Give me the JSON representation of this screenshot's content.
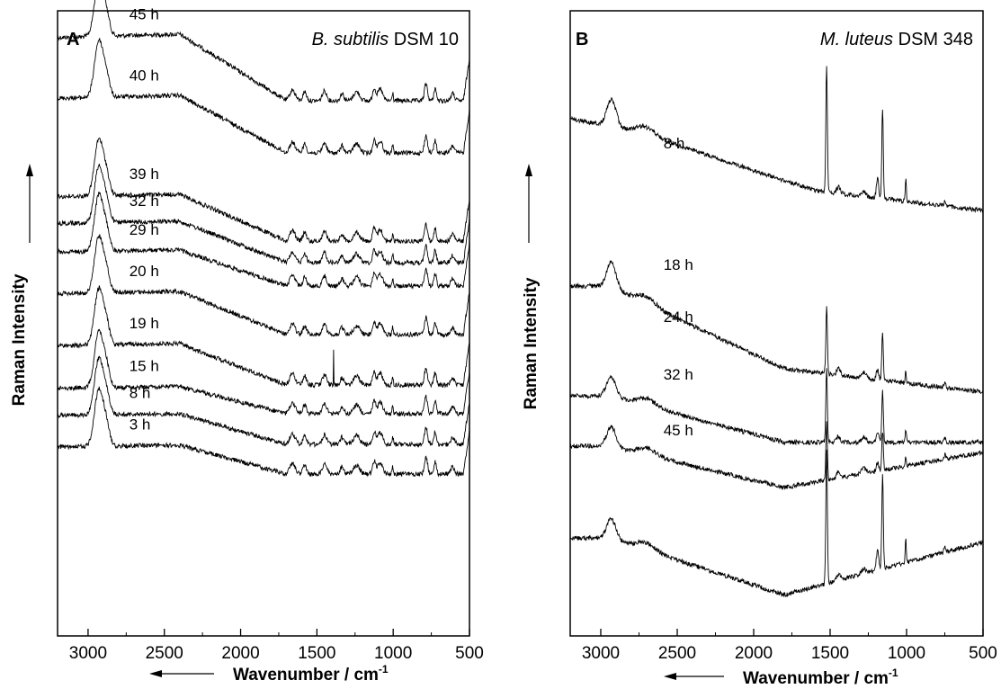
{
  "chart_data": [
    {
      "type": "line",
      "panel": "A",
      "title": "B. subtilis DSM 10",
      "title_italic": "B. subtilis",
      "title_roman": " DSM 10",
      "xlabel": "Wavenumber / cm",
      "xlabel_sup": "-1",
      "ylabel": "Raman Intensity",
      "xlim": [
        3200,
        500
      ],
      "x_ticks": [
        3000,
        2500,
        2000,
        1500,
        1000,
        500
      ],
      "x_tick_labels": [
        "3000",
        "2500",
        "2000",
        "1500",
        "1000",
        "500"
      ],
      "grid": false,
      "series": [
        {
          "name": "45 h",
          "label_x": 2730,
          "spikes": []
        },
        {
          "name": "40 h",
          "label_x": 2730,
          "spikes": []
        },
        {
          "name": "39 h",
          "label_x": 2730,
          "spikes": []
        },
        {
          "name": "32 h",
          "label_x": 2730,
          "spikes": []
        },
        {
          "name": "29 h",
          "label_x": 2730,
          "spikes": []
        },
        {
          "name": "20 h",
          "label_x": 2730,
          "spikes": []
        },
        {
          "name": "19 h",
          "label_x": 2730,
          "spikes": [
            1390
          ]
        },
        {
          "name": "15 h",
          "label_x": 2730,
          "spikes": []
        },
        {
          "name": "8 h",
          "label_x": 2730,
          "spikes": []
        },
        {
          "name": "3 h",
          "label_x": 2730,
          "spikes": []
        }
      ]
    },
    {
      "type": "line",
      "panel": "B",
      "title": "M. luteus DSM 348",
      "title_italic": "M. luteus",
      "title_roman": " DSM 348",
      "xlabel": "Wavenumber / cm",
      "xlabel_sup": "-1",
      "ylabel": "Raman Intensity",
      "xlim": [
        3200,
        500
      ],
      "x_ticks": [
        3000,
        2500,
        2000,
        1500,
        1000,
        500
      ],
      "x_tick_labels": [
        "3000",
        "2500",
        "2000",
        "1500",
        "1000",
        "500"
      ],
      "grid": false,
      "series": [
        {
          "name": "8 h",
          "label_x": 2590
        },
        {
          "name": "18 h",
          "label_x": 2590
        },
        {
          "name": "24 h",
          "label_x": 2590
        },
        {
          "name": "32 h",
          "label_x": 2590
        },
        {
          "name": "45 h",
          "label_x": 2590
        }
      ]
    }
  ]
}
